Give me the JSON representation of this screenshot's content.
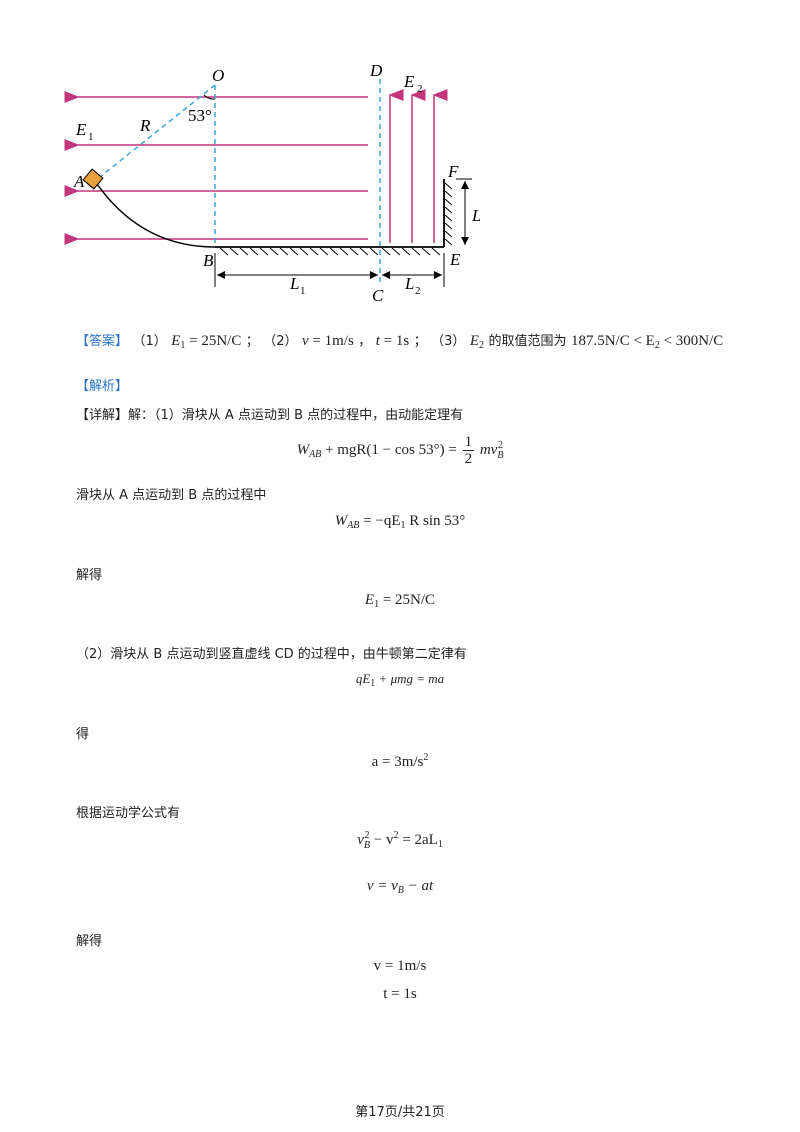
{
  "figure": {
    "labels": {
      "O": "O",
      "A": "A",
      "B": "B",
      "C": "C",
      "D": "D",
      "E": "E",
      "F": "F",
      "R": "R",
      "angle": "53°",
      "E1": "E",
      "E1_sub": "1",
      "E2": "E",
      "E2_sub": "2",
      "L1": "L",
      "L1_sub": "1",
      "L2": "L",
      "L2_sub": "2"
    },
    "colors": {
      "field_lines": "#c2357a",
      "dashed": "#3aa6d8",
      "block": "#e8a13a"
    }
  },
  "answer": {
    "tag": "【答案】",
    "p1_num": "（1）",
    "p1_expr": "= 25N/C",
    "p1_sep": "；",
    "p2_num": "（2）",
    "p2_v": "= 1m/s",
    "p2_comma": "，",
    "p2_t": "= 1s",
    "p2_sep": "；",
    "p3_num": "（3）",
    "p3_text": "的取值范围为",
    "p3_range": "187.5N/C < E",
    "p3_range_end": "< 300N/C"
  },
  "analysis": {
    "tag": "【解析】",
    "detail_tag": "【详解】解：",
    "s1_text": "（1）滑块从 A 点运动到 B 点的过程中，由动能定理有",
    "eq1_left": "W",
    "eq1_sub": "AB",
    "eq1_mid": "+ mgR(1 − cos 53°) =",
    "eq1_num": "1",
    "eq1_den": "2",
    "eq1_right": "mv",
    "eq1_right_sup": "2",
    "eq1_right_sub": "B",
    "s2_text": "滑块从 A 点运动到 B 点的过程中",
    "eq2_sub": "AB",
    "eq2_right": "= −qE",
    "eq2_right_sub": "1",
    "eq2_tail": "R sin 53°",
    "solve1": "解得",
    "eq3": "= 25N/C",
    "s3_text": "（2）滑块从 B 点运动到竖直虚线 CD 的过程中，由牛顿第二定律有",
    "eq4_a": "qE",
    "eq4_b": "+ μmg = ma",
    "de": "得",
    "eq5": "a = 3m/s",
    "eq5_sup": "2",
    "s4_text": "根据运动学公式有",
    "eq6_a": "− v",
    "eq6_b": "= 2aL",
    "eq7": "v = v",
    "eq7_tail": "− at",
    "solve2": "解得",
    "eq8": "v = 1m/s",
    "eq9": "t = 1s"
  },
  "footer": {
    "page": "第17页/共21页"
  }
}
